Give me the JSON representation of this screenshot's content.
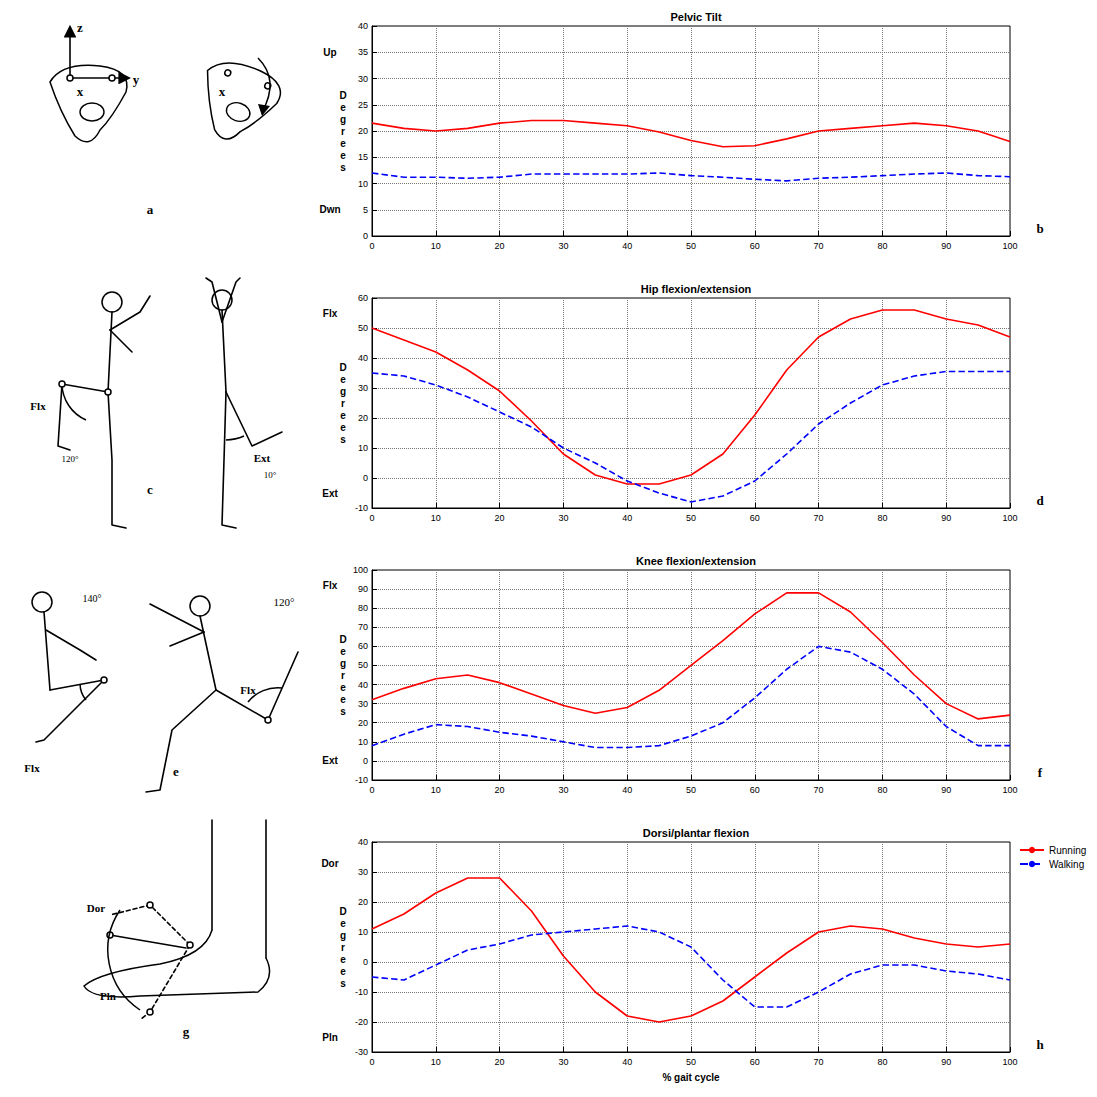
{
  "chart_data": [
    {
      "type": "line",
      "panel": "b",
      "title": "Pelvic Tilt",
      "ylabel": "Degrees",
      "y_annotations": [
        {
          "text": "Up",
          "y": 35
        },
        {
          "text": "Dwn",
          "y": 5
        }
      ],
      "x": [
        0,
        5,
        10,
        15,
        20,
        25,
        30,
        35,
        40,
        45,
        50,
        55,
        60,
        65,
        70,
        75,
        80,
        85,
        90,
        95,
        100
      ],
      "xlim": [
        0,
        100
      ],
      "xticks": [
        0,
        10,
        20,
        30,
        40,
        50,
        60,
        70,
        80,
        90,
        100
      ],
      "ylim": [
        0,
        40
      ],
      "yticks": [
        0,
        5,
        10,
        15,
        20,
        25,
        30,
        35,
        40
      ],
      "grid": true,
      "series": [
        {
          "name": "Running",
          "color": "#ff0000",
          "line_style": "solid",
          "values": [
            21.5,
            20.5,
            20,
            20.5,
            21.5,
            22,
            22,
            21.5,
            21,
            19.8,
            18.2,
            17,
            17.2,
            18.5,
            20,
            20.5,
            21,
            21.5,
            21,
            20,
            18
          ]
        },
        {
          "name": "Walking",
          "color": "#0000ff",
          "line_style": "dashed",
          "values": [
            12,
            11.2,
            11.2,
            11,
            11.2,
            11.8,
            11.8,
            11.8,
            11.8,
            12,
            11.5,
            11.2,
            10.8,
            10.5,
            11,
            11.2,
            11.5,
            11.8,
            12,
            11.5,
            11.3
          ]
        }
      ]
    },
    {
      "type": "line",
      "panel": "d",
      "title": "Hip flexion/extension",
      "ylabel": "Degrees",
      "y_annotations": [
        {
          "text": "Flx",
          "y": 55
        },
        {
          "text": "Ext",
          "y": -5
        }
      ],
      "x": [
        0,
        5,
        10,
        15,
        20,
        25,
        30,
        35,
        40,
        45,
        50,
        55,
        60,
        65,
        70,
        75,
        80,
        85,
        90,
        95,
        100
      ],
      "xlim": [
        0,
        100
      ],
      "xticks": [
        0,
        10,
        20,
        30,
        40,
        50,
        60,
        70,
        80,
        90,
        100
      ],
      "ylim": [
        -10,
        60
      ],
      "yticks": [
        -10,
        0,
        10,
        20,
        30,
        40,
        50,
        60
      ],
      "grid": true,
      "series": [
        {
          "name": "Running",
          "color": "#ff0000",
          "line_style": "solid",
          "values": [
            50,
            46,
            42,
            36,
            29,
            19,
            8,
            1,
            -2,
            -2,
            1,
            8,
            21,
            36,
            47,
            53,
            56,
            56,
            53,
            51,
            47
          ]
        },
        {
          "name": "Walking",
          "color": "#0000ff",
          "line_style": "dashed",
          "values": [
            35,
            34,
            31,
            27,
            22,
            17,
            10,
            5,
            -1,
            -5,
            -8,
            -6,
            -1,
            8,
            18,
            25,
            31,
            34,
            35.5,
            35.5,
            35.5
          ]
        }
      ]
    },
    {
      "type": "line",
      "panel": "f",
      "title": "Knee flexion/extension",
      "ylabel": "Degrees",
      "y_annotations": [
        {
          "text": "Flx",
          "y": 92
        },
        {
          "text": "Ext",
          "y": 0
        }
      ],
      "x": [
        0,
        5,
        10,
        15,
        20,
        25,
        30,
        35,
        40,
        45,
        50,
        55,
        60,
        65,
        70,
        75,
        80,
        85,
        90,
        95,
        100
      ],
      "xlim": [
        0,
        100
      ],
      "xticks": [
        0,
        10,
        20,
        30,
        40,
        50,
        60,
        70,
        80,
        90,
        100
      ],
      "ylim": [
        -10,
        100
      ],
      "yticks": [
        -10,
        0,
        10,
        20,
        30,
        40,
        50,
        60,
        70,
        80,
        90,
        100
      ],
      "grid": true,
      "series": [
        {
          "name": "Running",
          "color": "#ff0000",
          "line_style": "solid",
          "values": [
            32,
            38,
            43,
            45,
            41,
            35,
            29,
            25,
            28,
            37,
            50,
            63,
            77,
            88,
            88,
            78,
            62,
            45,
            30,
            22,
            24
          ]
        },
        {
          "name": "Walking",
          "color": "#0000ff",
          "line_style": "dashed",
          "values": [
            8,
            14,
            19,
            18,
            15,
            13,
            10,
            7,
            7,
            8,
            13,
            20,
            33,
            48,
            60,
            57,
            48,
            35,
            18,
            8,
            8
          ]
        }
      ]
    },
    {
      "type": "line",
      "panel": "h",
      "title": "Dorsi/plantar flexion",
      "ylabel": "Degrees",
      "xlabel": "% gait cycle",
      "legend": "right",
      "y_annotations": [
        {
          "text": "Dor",
          "y": 33
        },
        {
          "text": "Pln",
          "y": -25
        }
      ],
      "x": [
        0,
        5,
        10,
        15,
        20,
        25,
        30,
        35,
        40,
        45,
        50,
        55,
        60,
        65,
        70,
        75,
        80,
        85,
        90,
        95,
        100
      ],
      "xlim": [
        0,
        100
      ],
      "xticks": [
        0,
        10,
        20,
        30,
        40,
        50,
        60,
        70,
        80,
        90,
        100
      ],
      "ylim": [
        -30,
        40
      ],
      "yticks": [
        -30,
        -20,
        -10,
        0,
        10,
        20,
        30,
        40
      ],
      "grid": true,
      "series": [
        {
          "name": "Running",
          "color": "#ff0000",
          "line_style": "solid",
          "values": [
            11,
            16,
            23,
            28,
            28,
            17,
            2,
            -10,
            -18,
            -20,
            -18,
            -13,
            -5,
            3,
            10,
            12,
            11,
            8,
            6,
            5,
            6
          ]
        },
        {
          "name": "Walking",
          "color": "#0000ff",
          "line_style": "dashed",
          "values": [
            -5,
            -6,
            -1,
            4,
            6,
            9,
            10,
            11,
            12,
            10,
            5,
            -6,
            -15,
            -15,
            -10,
            -4,
            -1,
            -1,
            -3,
            -4,
            -6
          ]
        }
      ]
    }
  ],
  "illustrations": [
    {
      "panel": "a",
      "texts": [
        "z",
        "x",
        "y",
        "x"
      ]
    },
    {
      "panel": "c",
      "texts": [
        "Flx",
        "120°",
        "Ext",
        "10°"
      ]
    },
    {
      "panel": "e",
      "texts": [
        "140°",
        "Flx",
        "120°",
        "Flx"
      ]
    },
    {
      "panel": "g",
      "texts": [
        "Dor",
        "Pln"
      ]
    }
  ]
}
